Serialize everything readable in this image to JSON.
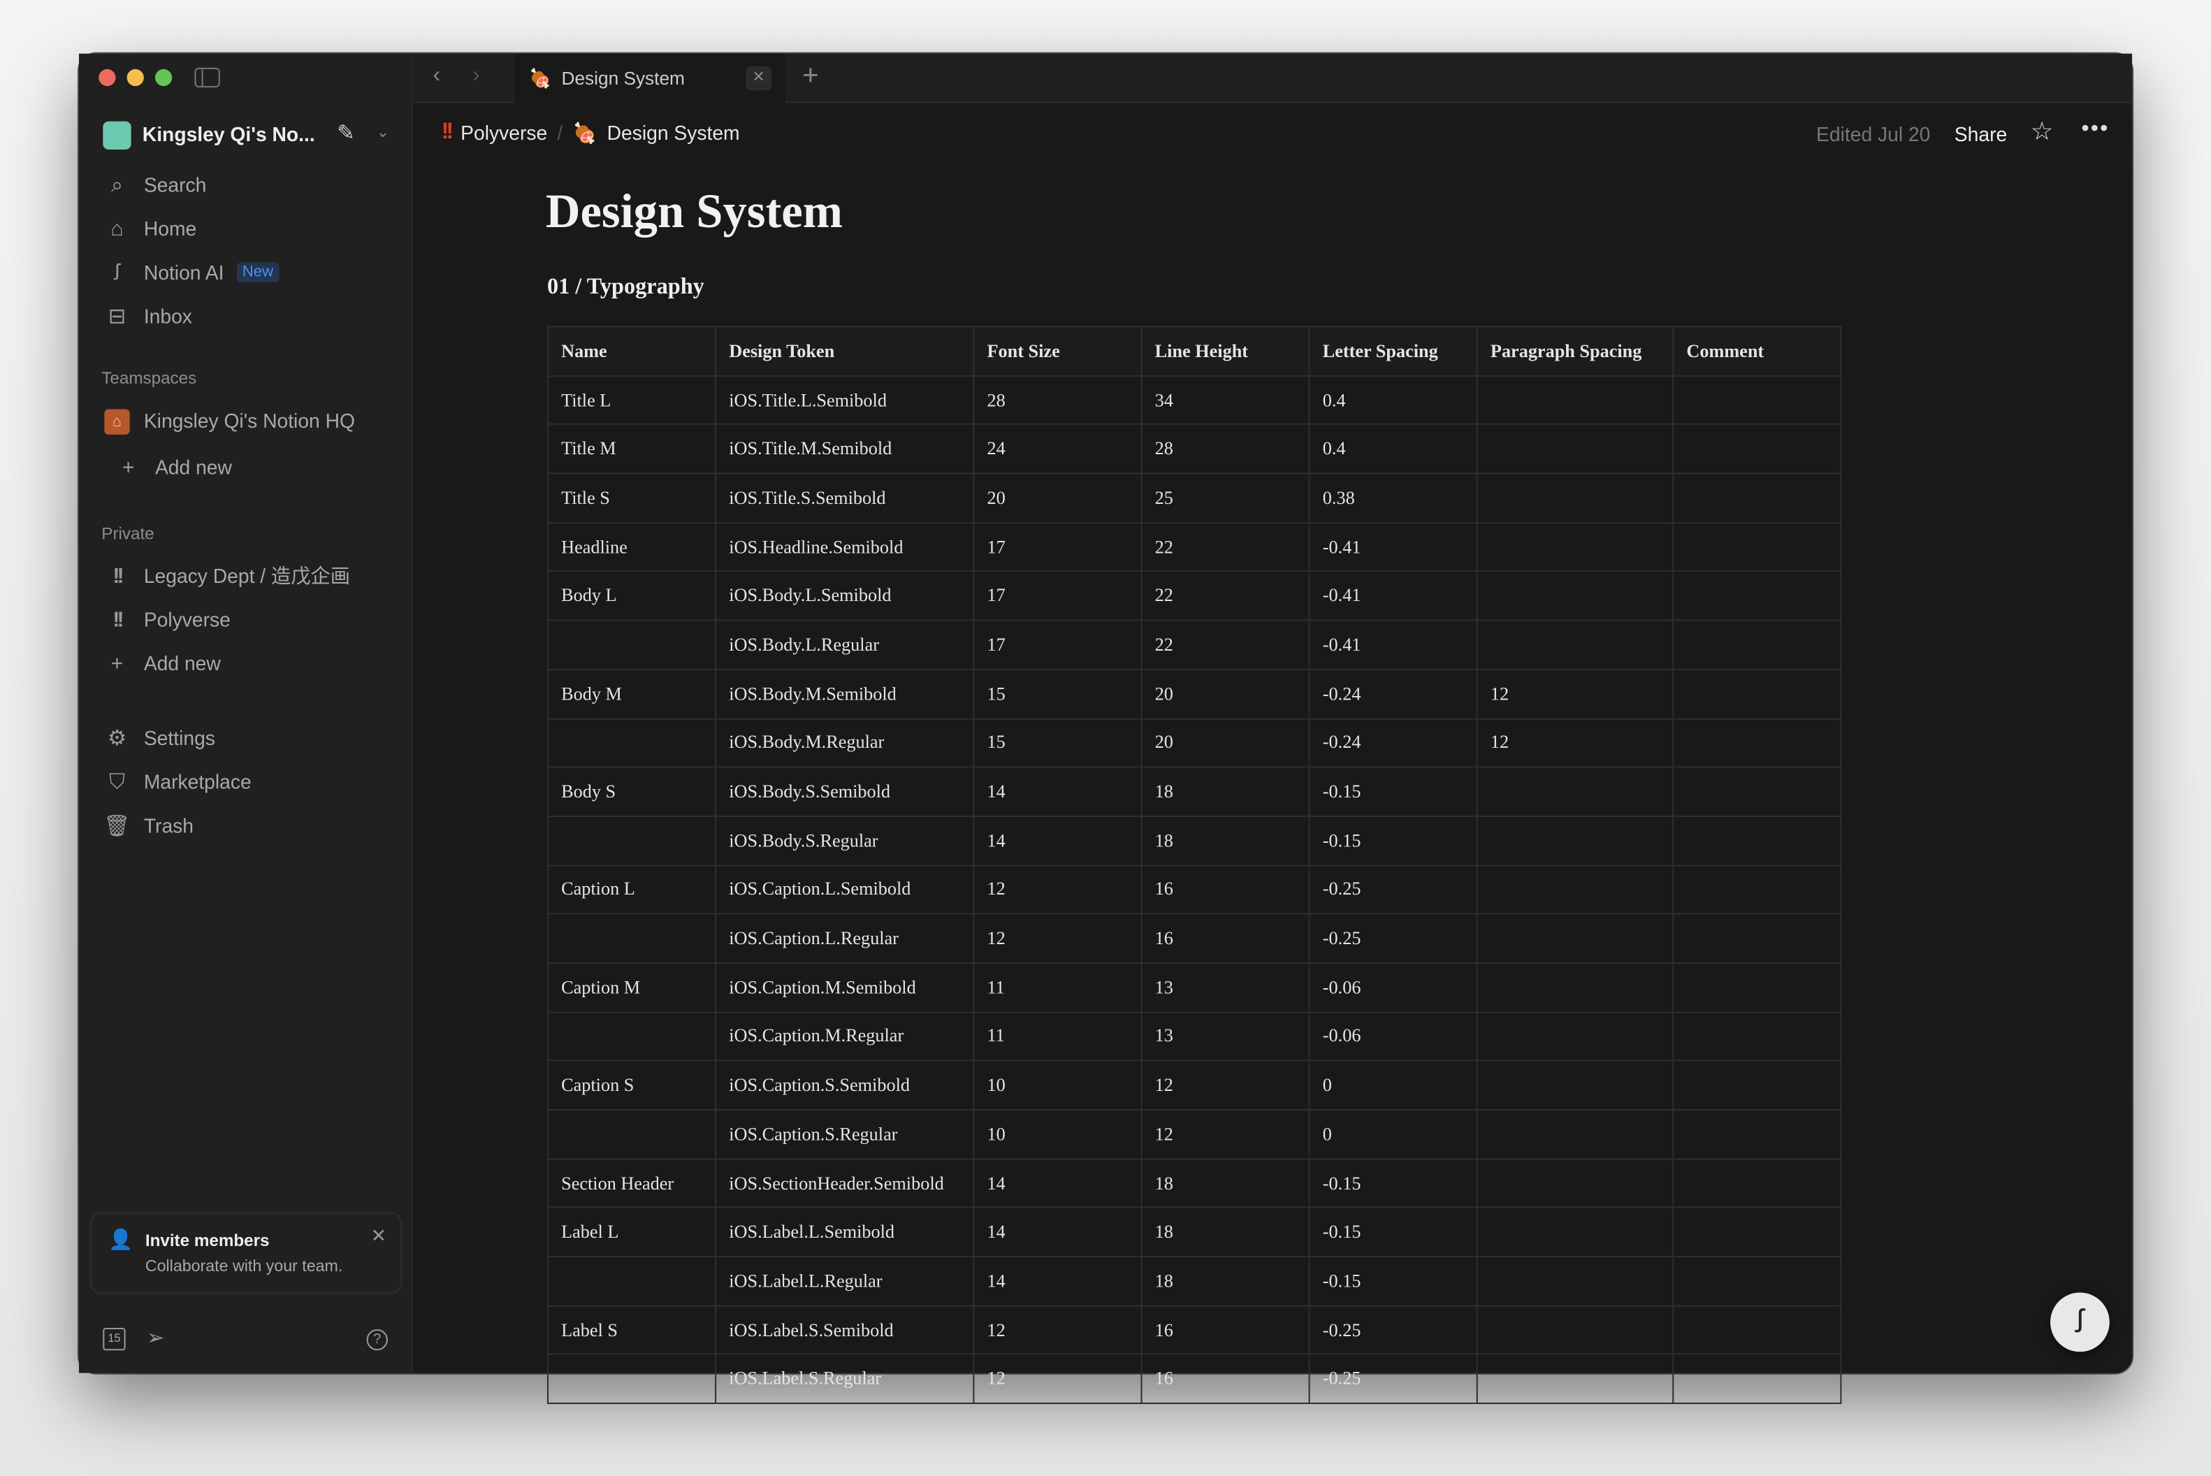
{
  "window": {
    "tab_title": "Design System",
    "tab_icon": "meat-on-bone-icon"
  },
  "sidebar": {
    "workspace": "Kingsley Qi's No...",
    "nav": [
      {
        "label": "Search",
        "icon": "search-icon"
      },
      {
        "label": "Home",
        "icon": "home-icon"
      },
      {
        "label": "Notion AI",
        "icon": "notion-ai-icon",
        "badge": "New"
      },
      {
        "label": "Inbox",
        "icon": "inbox-icon"
      }
    ],
    "teamspaces_label": "Teamspaces",
    "teamspaces": [
      {
        "label": "Kingsley Qi's Notion HQ"
      }
    ],
    "add_new": "Add new",
    "private_label": "Private",
    "private": [
      {
        "label": "Legacy Dept / 造戊企画"
      },
      {
        "label": "Polyverse"
      }
    ],
    "utility": [
      {
        "label": "Settings"
      },
      {
        "label": "Marketplace"
      },
      {
        "label": "Trash"
      }
    ],
    "invite": {
      "title": "Invite members",
      "subtitle": "Collaborate with your team."
    },
    "calendar_day": "15"
  },
  "header": {
    "breadcrumb": [
      "Polyverse",
      "Design System"
    ],
    "edited": "Edited Jul 20",
    "share": "Share"
  },
  "page": {
    "title": "Design System",
    "section": "01 / Typography"
  },
  "table": {
    "columns": [
      "Name",
      "Design Token",
      "Font Size",
      "Line Height",
      "Letter Spacing",
      "Paragraph Spacing",
      "Comment"
    ],
    "rows": [
      [
        "Title L",
        "iOS.Title.L.Semibold",
        "28",
        "34",
        "0.4",
        "",
        ""
      ],
      [
        "Title M",
        "iOS.Title.M.Semibold",
        "24",
        "28",
        "0.4",
        "",
        ""
      ],
      [
        "Title S",
        "iOS.Title.S.Semibold",
        "20",
        "25",
        "0.38",
        "",
        ""
      ],
      [
        "Headline",
        "iOS.Headline.Semibold",
        "17",
        "22",
        "-0.41",
        "",
        ""
      ],
      [
        "Body L",
        "iOS.Body.L.Semibold",
        "17",
        "22",
        "-0.41",
        "",
        ""
      ],
      [
        "",
        "iOS.Body.L.Regular",
        "17",
        "22",
        "-0.41",
        "",
        ""
      ],
      [
        "Body M",
        "iOS.Body.M.Semibold",
        "15",
        "20",
        "-0.24",
        "12",
        ""
      ],
      [
        "",
        "iOS.Body.M.Regular",
        "15",
        "20",
        "-0.24",
        "12",
        ""
      ],
      [
        "Body S",
        "iOS.Body.S.Semibold",
        "14",
        "18",
        "-0.15",
        "",
        ""
      ],
      [
        "",
        "iOS.Body.S.Regular",
        "14",
        "18",
        "-0.15",
        "",
        ""
      ],
      [
        "Caption L",
        "iOS.Caption.L.Semibold",
        "12",
        "16",
        "-0.25",
        "",
        ""
      ],
      [
        "",
        "iOS.Caption.L.Regular",
        "12",
        "16",
        "-0.25",
        "",
        ""
      ],
      [
        "Caption M",
        "iOS.Caption.M.Semibold",
        "11",
        "13",
        "-0.06",
        "",
        ""
      ],
      [
        "",
        "iOS.Caption.M.Regular",
        "11",
        "13",
        "-0.06",
        "",
        ""
      ],
      [
        "Caption S",
        "iOS.Caption.S.Semibold",
        "10",
        "12",
        "0",
        "",
        ""
      ],
      [
        "",
        "iOS.Caption.S.Regular",
        "10",
        "12",
        "0",
        "",
        ""
      ],
      [
        "Section Header",
        "iOS.SectionHeader.Semibold",
        "14",
        "18",
        "-0.15",
        "",
        ""
      ],
      [
        "Label L",
        "iOS.Label.L.Semibold",
        "14",
        "18",
        "-0.15",
        "",
        ""
      ],
      [
        "",
        "iOS.Label.L.Regular",
        "14",
        "18",
        "-0.15",
        "",
        ""
      ],
      [
        "Label S",
        "iOS.Label.S.Semibold",
        "12",
        "16",
        "-0.25",
        "",
        ""
      ],
      [
        "",
        "iOS.Label.S.Regular",
        "12",
        "16",
        "-0.25",
        "",
        ""
      ]
    ]
  },
  "colors": {
    "sidebar": "#202020",
    "main": "#191919",
    "accent_badge": "#2f81f7",
    "breadcrumb_icon": "#e03a2a"
  }
}
